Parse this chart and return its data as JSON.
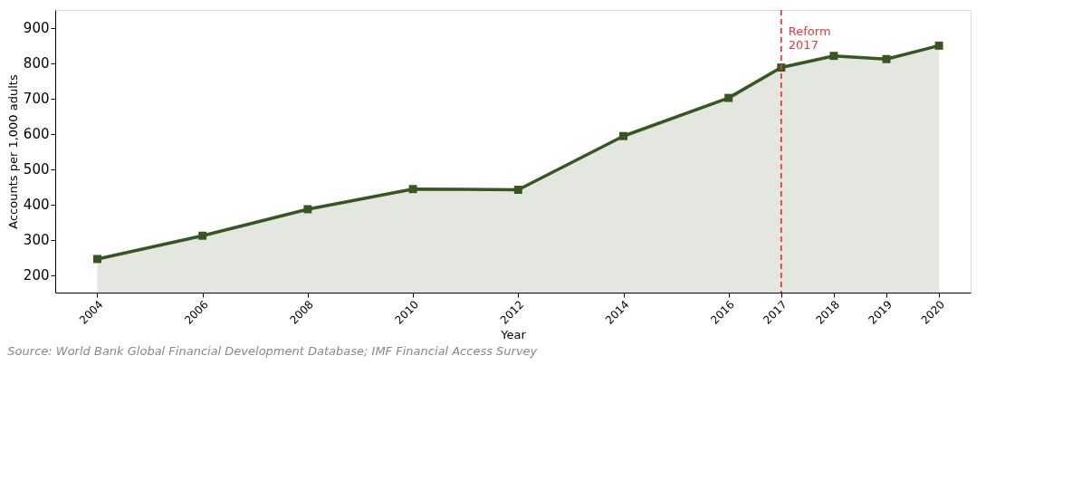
{
  "chart_data": {
    "type": "area",
    "xlabel": "Year",
    "ylabel": "Accounts per 1,000 adults",
    "annotations": [
      "Source: World Bank Global Financial Development Database; IMF Financial Access Survey"
    ],
    "x": [
      2004,
      2006,
      2008,
      2010,
      2012,
      2014,
      2016,
      2017,
      2018,
      2019,
      2020
    ],
    "series": [
      {
        "color": "#375623",
        "values": [
          245,
          311,
          386,
          443,
          441,
          593,
          701,
          787,
          820,
          811,
          849
        ]
      }
    ],
    "xlim": [
      2003.2,
      2020.6
    ],
    "xticks": [
      2004,
      2006,
      2008,
      2010,
      2012,
      2014,
      2016,
      2017,
      2018,
      2019,
      2020
    ],
    "ylim": [
      150,
      950
    ],
    "yticks": [
      200,
      300,
      400,
      500,
      600,
      700,
      800,
      900
    ],
    "ref_lines": [
      {
        "axis": "x",
        "value": 2017,
        "label": "Reform\n2017",
        "color": "#e8393a",
        "line_style": "dashed"
      }
    ],
    "marker": "square",
    "line_style": "solid",
    "grid": false
  }
}
